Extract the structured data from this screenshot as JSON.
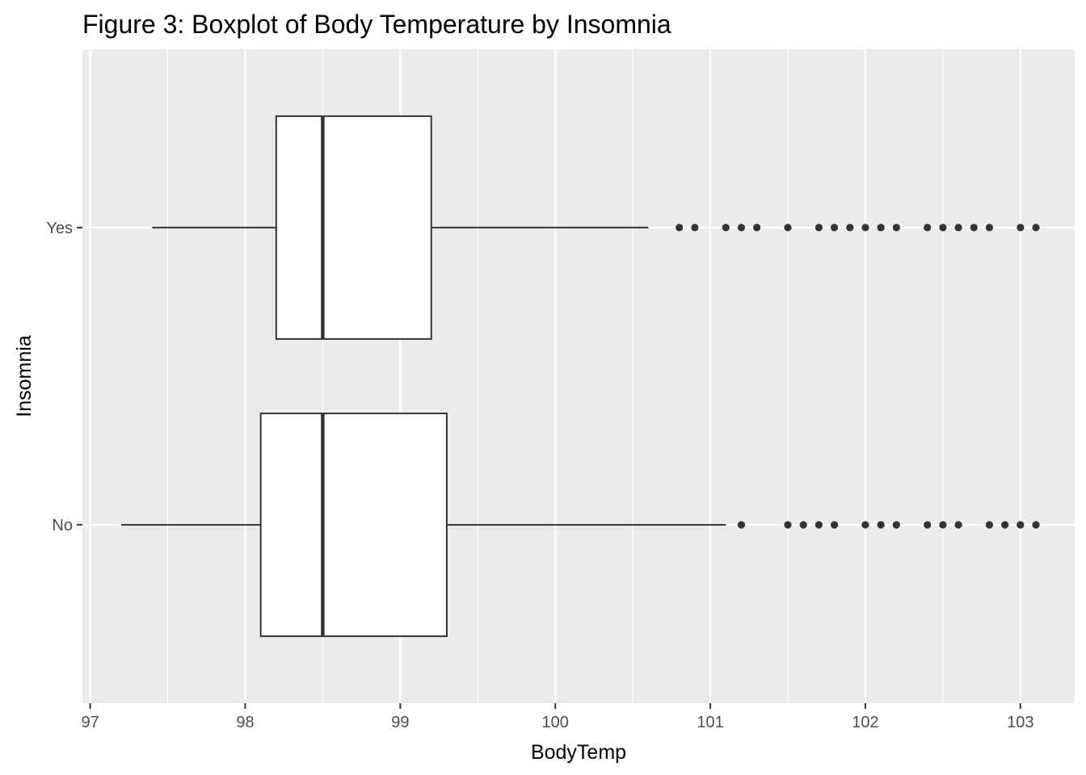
{
  "chart_data": {
    "type": "boxplot",
    "title": "Figure 3: Boxplot of Body Temperature by Insomnia",
    "xlabel": "BodyTemp",
    "ylabel": "Insomnia",
    "xlim": [
      96.95,
      103.35
    ],
    "x_ticks": [
      97,
      98,
      99,
      100,
      101,
      102,
      103
    ],
    "x_minor_ticks": [
      97.5,
      98.5,
      99.5,
      100.5,
      101.5,
      102.5
    ],
    "categories": [
      "No",
      "Yes"
    ],
    "grid": true,
    "colors": {
      "panel_background": "#ebebeb",
      "grid_line": "#ffffff",
      "box_fill": "#ffffff",
      "box_stroke": "#333333",
      "outlier": "#333333"
    },
    "series": [
      {
        "name": "No",
        "whisker_low": 97.2,
        "q1": 98.1,
        "median": 98.5,
        "q3": 99.3,
        "whisker_high": 101.1,
        "outliers": [
          101.2,
          101.5,
          101.6,
          101.7,
          101.8,
          102.0,
          102.1,
          102.2,
          102.4,
          102.5,
          102.6,
          102.8,
          102.9,
          103.0,
          103.1
        ]
      },
      {
        "name": "Yes",
        "whisker_low": 97.4,
        "q1": 98.2,
        "median": 98.5,
        "q3": 99.2,
        "whisker_high": 100.6,
        "outliers": [
          100.8,
          100.9,
          101.1,
          101.2,
          101.3,
          101.5,
          101.7,
          101.8,
          101.9,
          102.0,
          102.1,
          102.2,
          102.4,
          102.5,
          102.6,
          102.7,
          102.8,
          103.0,
          103.1
        ]
      }
    ]
  }
}
